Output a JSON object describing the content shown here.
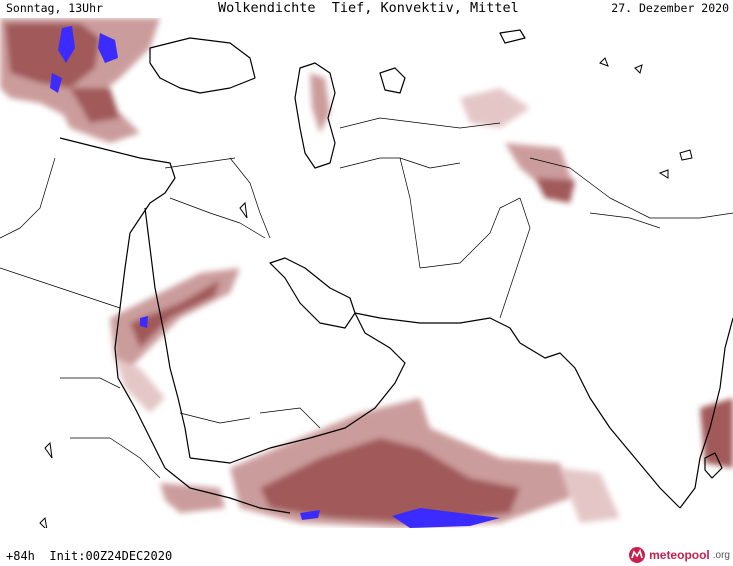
{
  "header": {
    "left": "Sonntag, 13Uhr",
    "title": "Wolkendichte  Tief, Konvektiv, Mittel",
    "right": "27. Dezember 2020"
  },
  "footer": {
    "run": "+84h  Init:00Z24DEC2020"
  },
  "logo": {
    "name": "meteopool",
    "tld": ".org",
    "color": "#c8214f"
  },
  "colors": {
    "cloud_light": "#e3c4c4",
    "cloud_mid": "#c99797",
    "cloud_dark": "#9c5151",
    "convective": "#3c2bff",
    "coastline": "#000000",
    "border": "#000000",
    "background": "#ffffff"
  }
}
